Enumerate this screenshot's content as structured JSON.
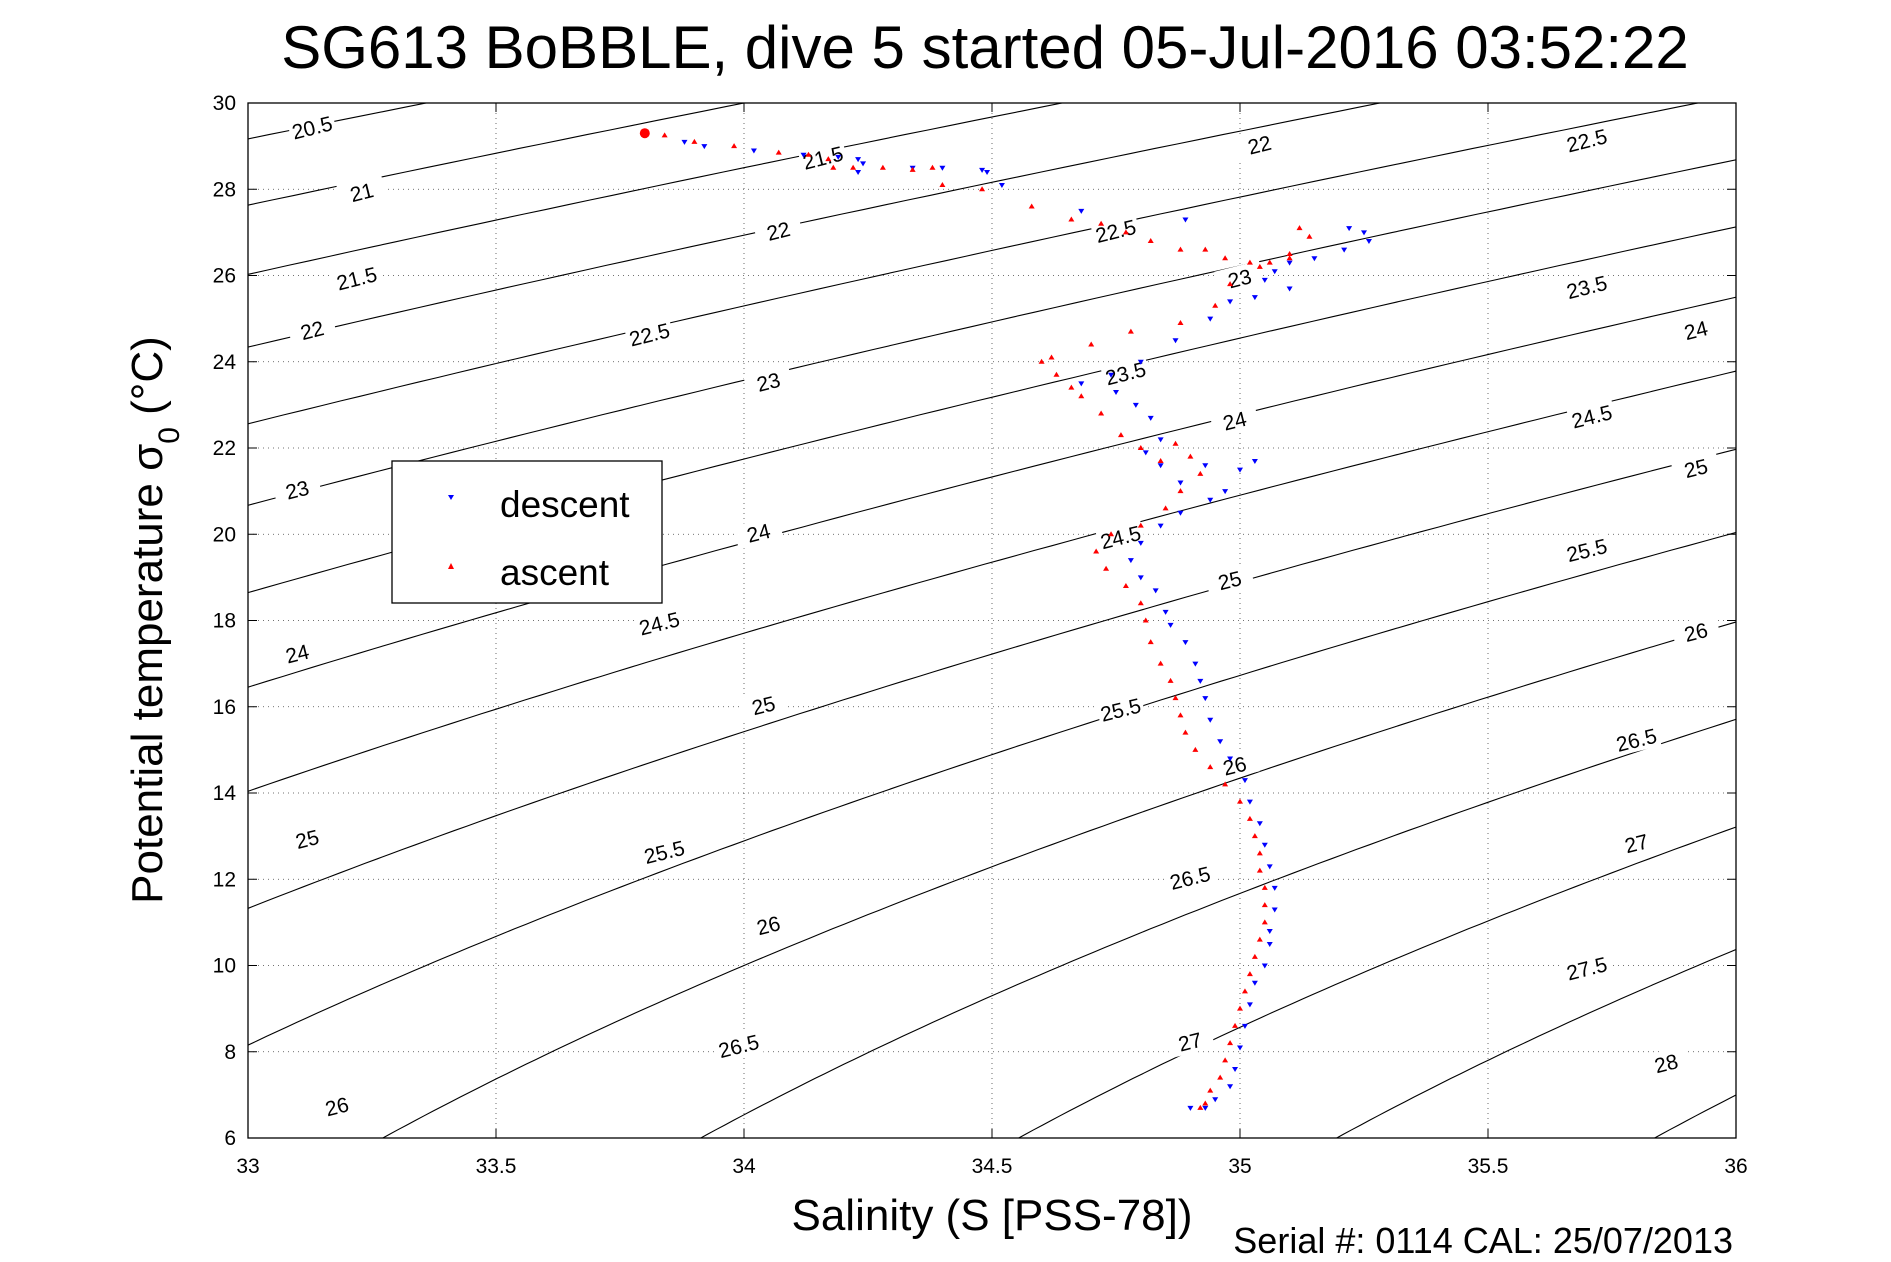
{
  "chart_data": {
    "type": "scatter",
    "title": "SG613 BoBBLE, dive 5 started 05-Jul-2016 03:52:22",
    "xlabel": "Salinity (S [PSS-78])",
    "ylabel": "Potential temperature σ0 (°C)",
    "ylabel_main": "Potential temperature ",
    "ylabel_sigma": "σ",
    "ylabel_sub": "0",
    "ylabel_unit": " (°C)",
    "xlim": [
      33,
      36
    ],
    "ylim": [
      6,
      30
    ],
    "x_ticks": [
      "33",
      "33.5",
      "34",
      "34.5",
      "35",
      "35.5",
      "36"
    ],
    "y_ticks": [
      "6",
      "8",
      "10",
      "12",
      "14",
      "16",
      "18",
      "20",
      "22",
      "24",
      "26",
      "28",
      "30"
    ],
    "grid": true,
    "legend_position": "left",
    "footer": "Serial #: 0114  CAL: 25/07/2013",
    "isopycnal_labels": [
      {
        "text": "20.5",
        "s": 33.13,
        "t": 29.4
      },
      {
        "text": "21",
        "s": 33.23,
        "t": 27.9
      },
      {
        "text": "21.5",
        "s": 33.22,
        "t": 25.9
      },
      {
        "text": "22",
        "s": 33.13,
        "t": 24.7
      },
      {
        "text": "23",
        "s": 33.1,
        "t": 21.0
      },
      {
        "text": "24",
        "s": 33.1,
        "t": 17.2
      },
      {
        "text": "25",
        "s": 33.12,
        "t": 12.9
      },
      {
        "text": "26",
        "s": 33.18,
        "t": 6.7
      },
      {
        "text": "21.5",
        "s": 34.16,
        "t": 28.7
      },
      {
        "text": "22",
        "s": 34.07,
        "t": 27.0
      },
      {
        "text": "22.5",
        "s": 33.81,
        "t": 24.6
      },
      {
        "text": "23",
        "s": 34.05,
        "t": 23.5
      },
      {
        "text": "24",
        "s": 34.03,
        "t": 20.0
      },
      {
        "text": "24.5",
        "s": 33.83,
        "t": 17.9
      },
      {
        "text": "25",
        "s": 34.04,
        "t": 16.0
      },
      {
        "text": "25.5",
        "s": 33.84,
        "t": 12.6
      },
      {
        "text": "26",
        "s": 34.05,
        "t": 10.9
      },
      {
        "text": "26.5",
        "s": 33.99,
        "t": 8.1
      },
      {
        "text": "22",
        "s": 35.04,
        "t": 29.0
      },
      {
        "text": "22.5",
        "s": 34.75,
        "t": 27.0
      },
      {
        "text": "23",
        "s": 35.0,
        "t": 25.9
      },
      {
        "text": "23.5",
        "s": 34.77,
        "t": 23.7
      },
      {
        "text": "24",
        "s": 34.99,
        "t": 22.6
      },
      {
        "text": "24.5",
        "s": 34.76,
        "t": 19.9
      },
      {
        "text": "25",
        "s": 34.98,
        "t": 18.9
      },
      {
        "text": "25.5",
        "s": 34.76,
        "t": 15.9
      },
      {
        "text": "26",
        "s": 34.99,
        "t": 14.6
      },
      {
        "text": "26.5",
        "s": 34.9,
        "t": 12.0
      },
      {
        "text": "27",
        "s": 34.9,
        "t": 8.2
      },
      {
        "text": "22.5",
        "s": 35.7,
        "t": 29.1
      },
      {
        "text": "23.5",
        "s": 35.7,
        "t": 25.7
      },
      {
        "text": "24",
        "s": 35.92,
        "t": 24.7
      },
      {
        "text": "24.5",
        "s": 35.71,
        "t": 22.7
      },
      {
        "text": "25",
        "s": 35.92,
        "t": 21.5
      },
      {
        "text": "25.5",
        "s": 35.7,
        "t": 19.6
      },
      {
        "text": "26",
        "s": 35.92,
        "t": 17.7
      },
      {
        "text": "26.5",
        "s": 35.8,
        "t": 15.2
      },
      {
        "text": "27",
        "s": 35.8,
        "t": 12.8
      },
      {
        "text": "27.5",
        "s": 35.7,
        "t": 9.9
      },
      {
        "text": "28",
        "s": 35.86,
        "t": 7.7
      }
    ],
    "series": [
      {
        "name": "descent",
        "color": "#0000ff",
        "marker": "triangle-down",
        "points": [
          [
            33.88,
            29.1
          ],
          [
            33.92,
            29.0
          ],
          [
            34.02,
            28.9
          ],
          [
            34.12,
            28.8
          ],
          [
            34.19,
            28.75
          ],
          [
            34.23,
            28.7
          ],
          [
            34.24,
            28.6
          ],
          [
            34.23,
            28.4
          ],
          [
            34.34,
            28.5
          ],
          [
            34.4,
            28.5
          ],
          [
            34.48,
            28.45
          ],
          [
            34.49,
            28.4
          ],
          [
            34.52,
            28.1
          ],
          [
            34.68,
            27.5
          ],
          [
            34.89,
            27.3
          ],
          [
            35.22,
            27.1
          ],
          [
            35.26,
            26.8
          ],
          [
            35.25,
            27.0
          ],
          [
            35.21,
            26.6
          ],
          [
            35.15,
            26.4
          ],
          [
            35.1,
            26.3
          ],
          [
            35.07,
            26.1
          ],
          [
            35.05,
            25.9
          ],
          [
            35.1,
            25.7
          ],
          [
            35.03,
            25.5
          ],
          [
            34.98,
            25.4
          ],
          [
            34.94,
            25.0
          ],
          [
            34.87,
            24.5
          ],
          [
            34.8,
            24.0
          ],
          [
            34.74,
            23.7
          ],
          [
            34.68,
            23.5
          ],
          [
            34.75,
            23.3
          ],
          [
            34.79,
            23.0
          ],
          [
            34.82,
            22.7
          ],
          [
            34.84,
            22.2
          ],
          [
            34.81,
            21.9
          ],
          [
            34.84,
            21.6
          ],
          [
            34.88,
            21.2
          ],
          [
            34.93,
            21.6
          ],
          [
            35.0,
            21.5
          ],
          [
            35.03,
            21.7
          ],
          [
            34.97,
            21.0
          ],
          [
            34.94,
            20.8
          ],
          [
            34.88,
            20.5
          ],
          [
            34.84,
            20.2
          ],
          [
            34.8,
            19.8
          ],
          [
            34.78,
            19.4
          ],
          [
            34.8,
            19.0
          ],
          [
            34.83,
            18.7
          ],
          [
            34.85,
            18.2
          ],
          [
            34.86,
            17.9
          ],
          [
            34.89,
            17.5
          ],
          [
            34.91,
            17.0
          ],
          [
            34.92,
            16.6
          ],
          [
            34.93,
            16.2
          ],
          [
            34.94,
            15.7
          ],
          [
            34.96,
            15.2
          ],
          [
            34.98,
            14.8
          ],
          [
            35.01,
            14.3
          ],
          [
            35.02,
            13.8
          ],
          [
            35.04,
            13.3
          ],
          [
            35.05,
            12.8
          ],
          [
            35.06,
            12.3
          ],
          [
            35.07,
            11.8
          ],
          [
            35.07,
            11.3
          ],
          [
            35.06,
            10.8
          ],
          [
            35.06,
            10.5
          ],
          [
            35.05,
            10.0
          ],
          [
            35.03,
            9.6
          ],
          [
            35.02,
            9.1
          ],
          [
            35.01,
            8.6
          ],
          [
            35.0,
            8.1
          ],
          [
            34.99,
            7.6
          ],
          [
            34.98,
            7.2
          ],
          [
            34.95,
            6.9
          ],
          [
            34.93,
            6.7
          ],
          [
            34.9,
            6.7
          ]
        ]
      },
      {
        "name": "ascent",
        "color": "#ff0000",
        "marker": "triangle-up",
        "points": [
          [
            33.8,
            29.3
          ],
          [
            33.84,
            29.25
          ],
          [
            33.9,
            29.1
          ],
          [
            33.98,
            29.0
          ],
          [
            34.07,
            28.85
          ],
          [
            34.13,
            28.8
          ],
          [
            34.17,
            28.7
          ],
          [
            34.18,
            28.5
          ],
          [
            34.22,
            28.5
          ],
          [
            34.28,
            28.5
          ],
          [
            34.34,
            28.45
          ],
          [
            34.38,
            28.5
          ],
          [
            34.4,
            28.1
          ],
          [
            34.48,
            28.0
          ],
          [
            34.58,
            27.6
          ],
          [
            34.66,
            27.3
          ],
          [
            34.72,
            27.2
          ],
          [
            34.77,
            27.0
          ],
          [
            34.82,
            26.8
          ],
          [
            34.88,
            26.6
          ],
          [
            34.93,
            26.6
          ],
          [
            34.97,
            26.4
          ],
          [
            35.02,
            26.3
          ],
          [
            35.06,
            26.3
          ],
          [
            35.1,
            26.5
          ],
          [
            35.14,
            26.9
          ],
          [
            35.12,
            27.1
          ],
          [
            35.1,
            26.4
          ],
          [
            35.04,
            26.2
          ],
          [
            34.98,
            25.8
          ],
          [
            34.95,
            25.3
          ],
          [
            34.88,
            24.9
          ],
          [
            34.78,
            24.7
          ],
          [
            34.7,
            24.4
          ],
          [
            34.62,
            24.1
          ],
          [
            34.6,
            24.0
          ],
          [
            34.63,
            23.7
          ],
          [
            34.66,
            23.4
          ],
          [
            34.68,
            23.2
          ],
          [
            34.72,
            22.8
          ],
          [
            34.76,
            22.3
          ],
          [
            34.8,
            22.0
          ],
          [
            34.84,
            21.7
          ],
          [
            34.87,
            22.1
          ],
          [
            34.9,
            21.8
          ],
          [
            34.92,
            21.4
          ],
          [
            34.88,
            21.0
          ],
          [
            34.85,
            20.6
          ],
          [
            34.8,
            20.2
          ],
          [
            34.74,
            20.0
          ],
          [
            34.71,
            19.6
          ],
          [
            34.73,
            19.2
          ],
          [
            34.77,
            18.8
          ],
          [
            34.8,
            18.4
          ],
          [
            34.81,
            18.0
          ],
          [
            34.82,
            17.5
          ],
          [
            34.84,
            17.0
          ],
          [
            34.86,
            16.6
          ],
          [
            34.87,
            16.2
          ],
          [
            34.88,
            15.8
          ],
          [
            34.89,
            15.4
          ],
          [
            34.91,
            15.0
          ],
          [
            34.94,
            14.6
          ],
          [
            34.97,
            14.2
          ],
          [
            35.0,
            13.8
          ],
          [
            35.02,
            13.4
          ],
          [
            35.03,
            13.0
          ],
          [
            35.04,
            12.6
          ],
          [
            35.04,
            12.2
          ],
          [
            35.05,
            11.8
          ],
          [
            35.05,
            11.4
          ],
          [
            35.05,
            11.0
          ],
          [
            35.04,
            10.6
          ],
          [
            35.03,
            10.2
          ],
          [
            35.02,
            9.8
          ],
          [
            35.01,
            9.4
          ],
          [
            35.0,
            9.0
          ],
          [
            34.99,
            8.6
          ],
          [
            34.98,
            8.2
          ],
          [
            34.97,
            7.8
          ],
          [
            34.96,
            7.4
          ],
          [
            34.94,
            7.1
          ],
          [
            34.93,
            6.8
          ],
          [
            34.92,
            6.7
          ]
        ]
      }
    ]
  }
}
